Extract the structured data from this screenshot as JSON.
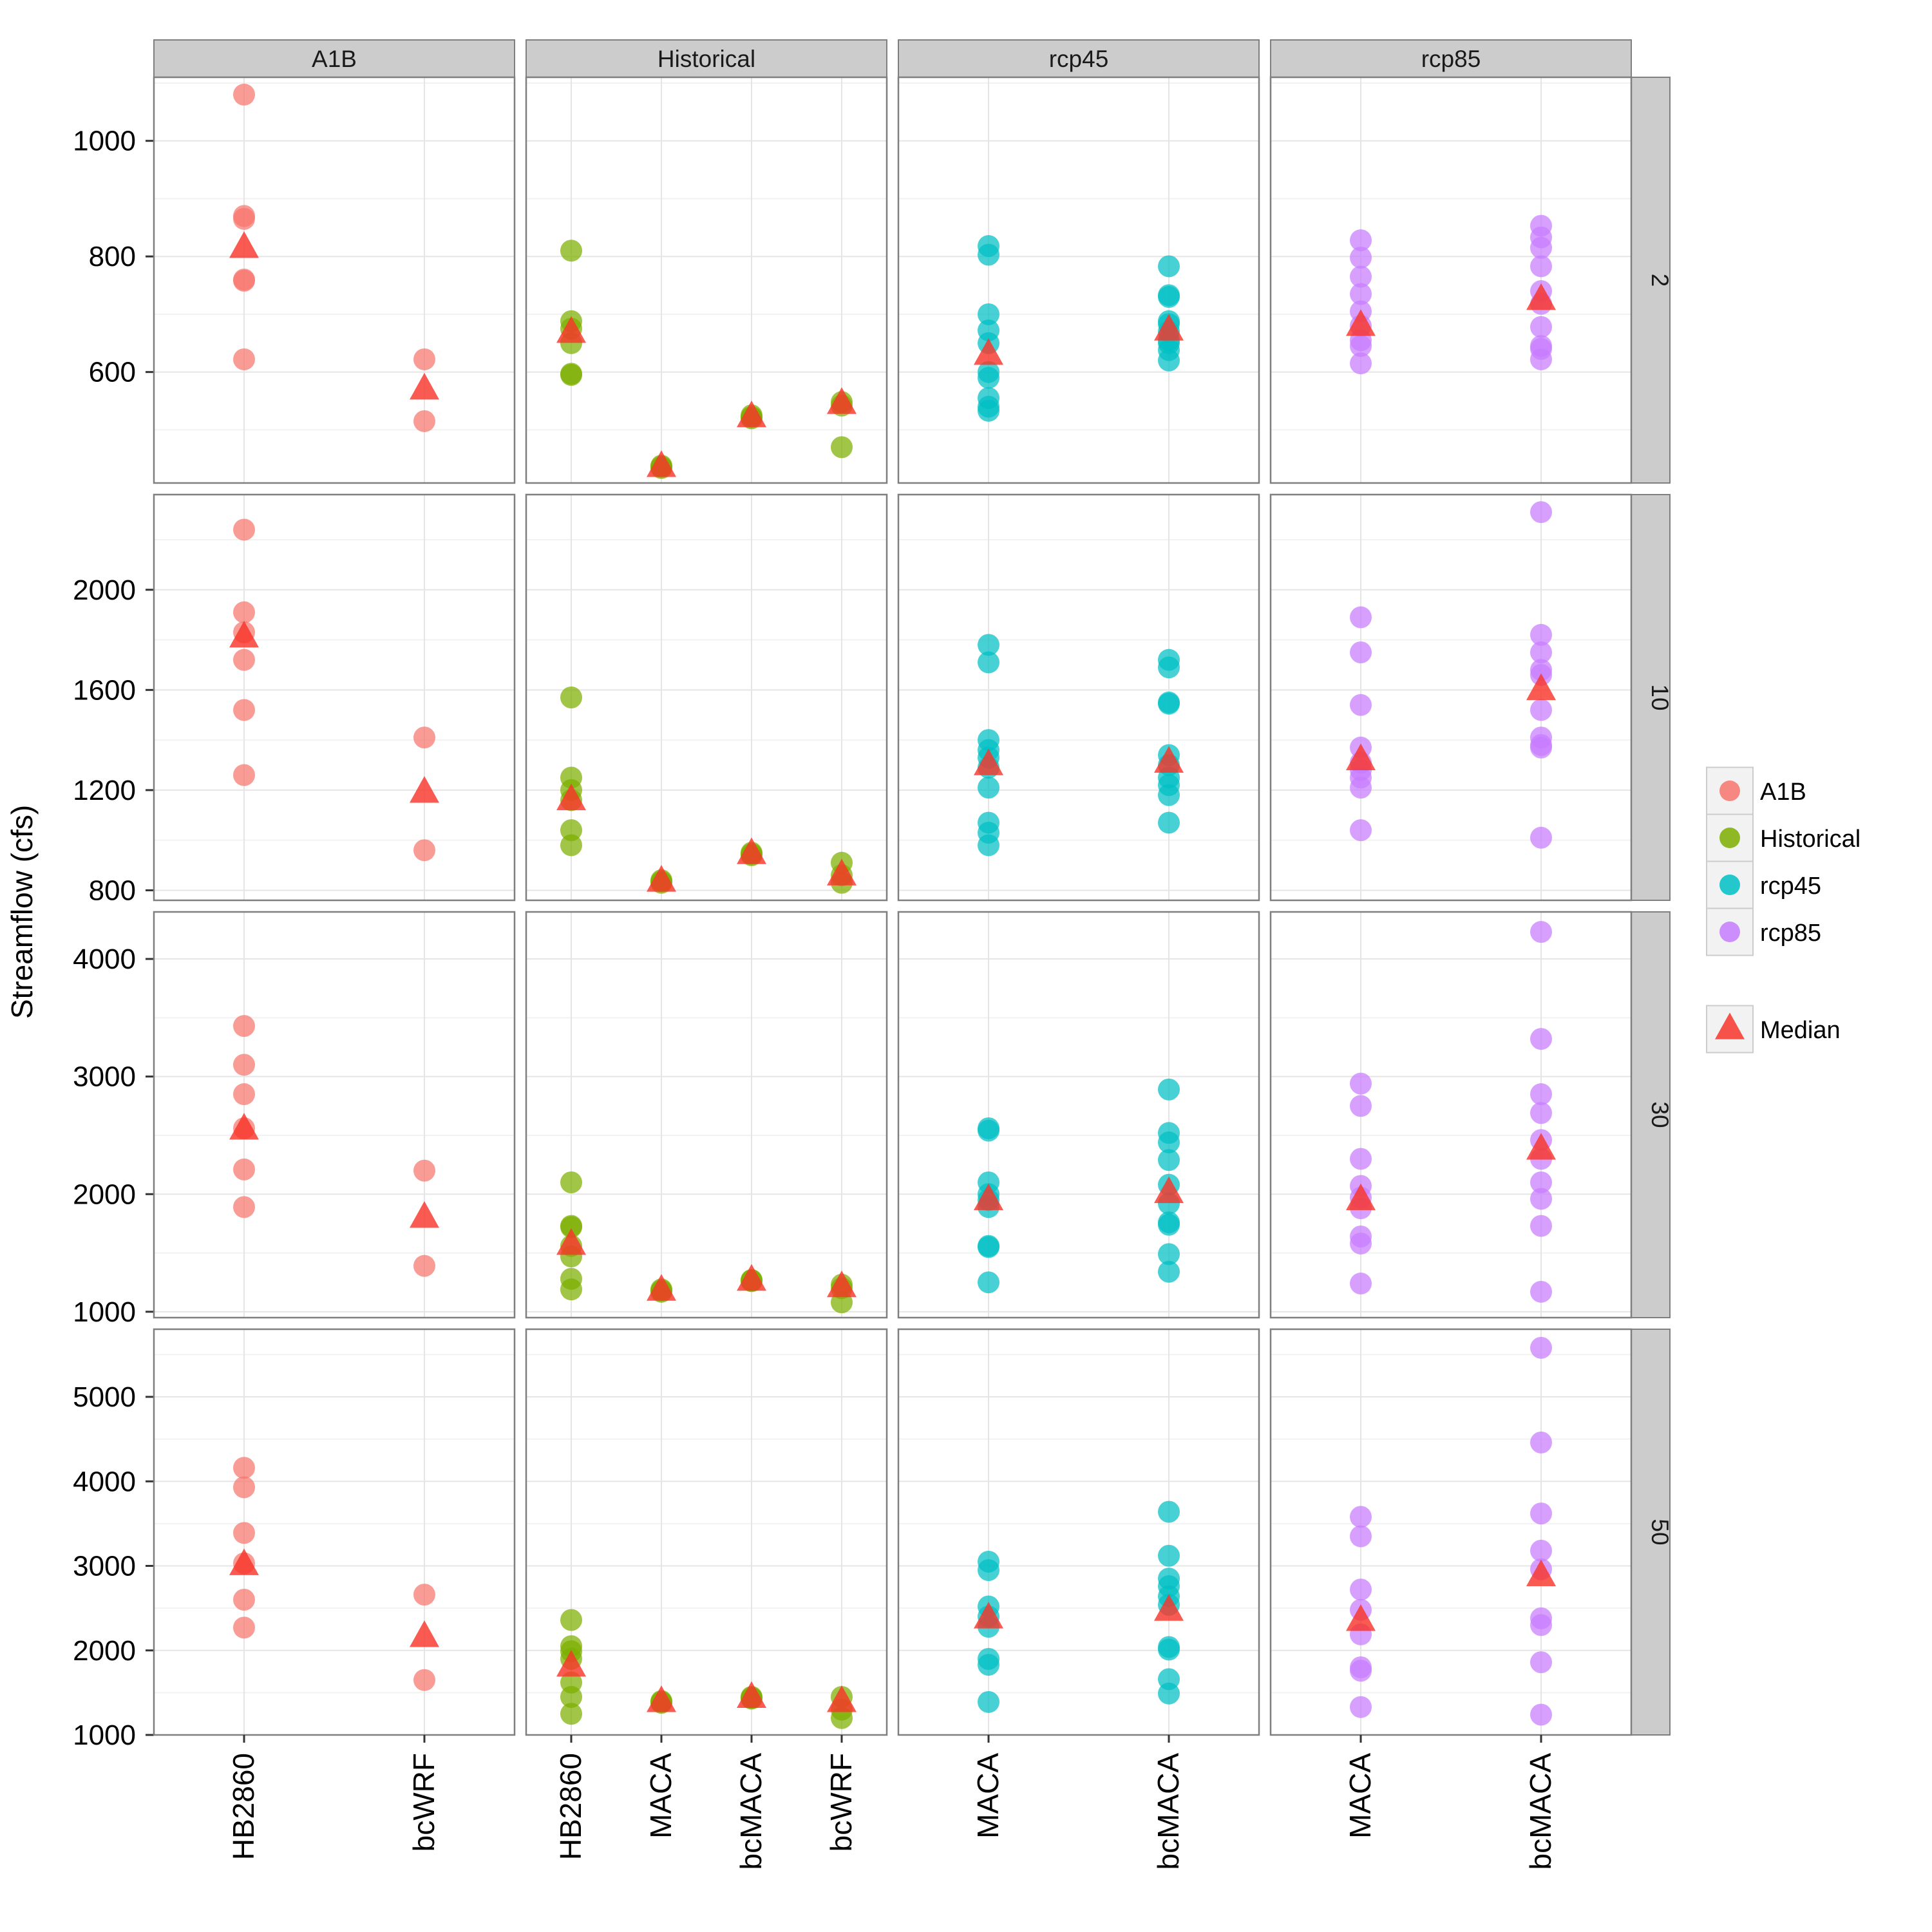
{
  "chart_data": {
    "type": "scatter",
    "ylabel": "Streamflow (cfs)",
    "xlabel": "",
    "facet_cols": [
      {
        "label": "A1B",
        "categories": [
          "HB2860",
          "bcWRF"
        ]
      },
      {
        "label": "Historical",
        "categories": [
          "HB2860",
          "MACA",
          "bcMACA",
          "bcWRF"
        ]
      },
      {
        "label": "rcp45",
        "categories": [
          "MACA",
          "bcMACA"
        ]
      },
      {
        "label": "rcp85",
        "categories": [
          "MACA",
          "bcMACA"
        ]
      }
    ],
    "facet_rows": [
      {
        "label": "2",
        "ylim": [
          408,
          1110
        ],
        "yticks": [
          600,
          800,
          1000
        ]
      },
      {
        "label": "10",
        "ylim": [
          760,
          2380
        ],
        "yticks": [
          800,
          1200,
          1600,
          2000
        ]
      },
      {
        "label": "30",
        "ylim": [
          950,
          4400
        ],
        "yticks": [
          1000,
          2000,
          3000,
          4000
        ]
      },
      {
        "label": "50",
        "ylim": [
          1000,
          5800
        ],
        "yticks": [
          1000,
          2000,
          3000,
          4000,
          5000
        ]
      }
    ],
    "colors": {
      "A1B": "#F8766D",
      "Historical": "#7CAE00",
      "rcp45": "#00BFC4",
      "rcp85": "#C77CFF",
      "median": "#F8362B"
    },
    "legend": {
      "series": [
        "A1B",
        "Historical",
        "rcp45",
        "rcp85"
      ],
      "median_label": "Median",
      "position": "right"
    },
    "grid": true,
    "points": [
      [
        {
          "HB2860": [
            1080,
            870,
            865,
            760,
            758,
            622
          ],
          "bcWRF": [
            622,
            515
          ]
        },
        {
          "HB2860": [
            810,
            688,
            675,
            650,
            597,
            595
          ],
          "MACA": [
            438,
            436,
            434
          ],
          "bcMACA": [
            525,
            522,
            520
          ],
          "bcWRF": [
            548,
            542,
            470
          ]
        },
        {
          "MACA": [
            818,
            803,
            700,
            672,
            650,
            600,
            590,
            555,
            540,
            533
          ],
          "bcMACA": [
            783,
            733,
            730,
            688,
            683,
            670,
            655,
            650,
            638,
            620
          ]
        },
        {
          "MACA": [
            828,
            798,
            765,
            735,
            705,
            680,
            655,
            645,
            615
          ],
          "bcMACA": [
            853,
            833,
            815,
            783,
            740,
            718,
            678,
            645,
            640,
            622
          ]
        }
      ],
      [
        {
          "HB2860": [
            2240,
            1910,
            1830,
            1720,
            1520,
            1260
          ],
          "bcWRF": [
            1410,
            960
          ]
        },
        {
          "HB2860": [
            1570,
            1250,
            1200,
            1160,
            1040,
            980
          ],
          "MACA": [
            840,
            835,
            830
          ],
          "bcMACA": [
            950,
            945,
            940
          ],
          "bcWRF": [
            910,
            860,
            830
          ]
        },
        {
          "MACA": [
            1780,
            1710,
            1400,
            1360,
            1330,
            1290,
            1210,
            1070,
            1030,
            980
          ],
          "bcMACA": [
            1720,
            1690,
            1550,
            1545,
            1340,
            1300,
            1250,
            1220,
            1180,
            1070
          ]
        },
        {
          "MACA": [
            1890,
            1750,
            1540,
            1370,
            1310,
            1280,
            1250,
            1210,
            1040
          ],
          "bcMACA": [
            2310,
            1820,
            1750,
            1680,
            1660,
            1520,
            1410,
            1380,
            1370,
            1010
          ]
        }
      ],
      [
        {
          "HB2860": [
            3430,
            3100,
            2850,
            2560,
            2210,
            1890
          ],
          "bcWRF": [
            2200,
            1390
          ]
        },
        {
          "HB2860": [
            2100,
            1730,
            1720,
            1560,
            1470,
            1280,
            1190
          ],
          "MACA": [
            1190,
            1180,
            1170
          ],
          "bcMACA": [
            1270,
            1265,
            1260
          ],
          "bcWRF": [
            1230,
            1200,
            1080
          ]
        },
        {
          "MACA": [
            2560,
            2540,
            2100,
            2000,
            1950,
            1890,
            1560,
            1550,
            1250
          ],
          "bcMACA": [
            2890,
            2520,
            2440,
            2290,
            2080,
            1920,
            1760,
            1740,
            1490,
            1340
          ]
        },
        {
          "MACA": [
            2940,
            2750,
            2300,
            2070,
            1970,
            1880,
            1640,
            1580,
            1240
          ],
          "bcMACA": [
            4230,
            3320,
            2850,
            2690,
            2460,
            2300,
            2100,
            1960,
            1730,
            1170
          ]
        }
      ],
      [
        {
          "HB2860": [
            4160,
            3930,
            3390,
            3030,
            2600,
            2270
          ],
          "bcWRF": [
            2660,
            1650
          ]
        },
        {
          "HB2860": [
            2360,
            2050,
            1990,
            1900,
            1620,
            1450,
            1250
          ],
          "MACA": [
            1400,
            1390,
            1380
          ],
          "bcMACA": [
            1450,
            1440,
            1430
          ],
          "bcWRF": [
            1450,
            1300,
            1200
          ]
        },
        {
          "MACA": [
            3050,
            2950,
            2520,
            2400,
            2280,
            1900,
            1830,
            1390
          ],
          "bcMACA": [
            3640,
            3120,
            2850,
            2760,
            2640,
            2540,
            2040,
            2010,
            1660,
            1490
          ]
        },
        {
          "MACA": [
            3580,
            3350,
            2720,
            2480,
            2190,
            1800,
            1760,
            1330
          ],
          "bcMACA": [
            5580,
            4460,
            3620,
            3180,
            2960,
            2380,
            2300,
            1860,
            1240
          ]
        }
      ]
    ],
    "medians": [
      [
        {
          "HB2860": 815,
          "bcWRF": 570
        },
        {
          "HB2860": 668,
          "MACA": 436,
          "bcMACA": 522,
          "bcWRF": 545
        },
        {
          "MACA": 630,
          "bcMACA": 672
        },
        {
          "MACA": 680,
          "bcMACA": 725
        }
      ],
      [
        {
          "HB2860": 1810,
          "bcWRF": 1190
        },
        {
          "HB2860": 1160,
          "MACA": 835,
          "bcMACA": 945,
          "bcWRF": 860
        },
        {
          "MACA": 1300,
          "bcMACA": 1310
        },
        {
          "MACA": 1320,
          "bcMACA": 1600
        }
      ],
      [
        {
          "HB2860": 2550,
          "bcWRF": 1800
        },
        {
          "HB2860": 1570,
          "MACA": 1180,
          "bcMACA": 1265,
          "bcWRF": 1210
        },
        {
          "MACA": 1950,
          "bcMACA": 2010
        },
        {
          "MACA": 1950,
          "bcMACA": 2380
        }
      ],
      [
        {
          "HB2860": 3010,
          "bcWRF": 2160
        },
        {
          "HB2860": 1810,
          "MACA": 1390,
          "bcMACA": 1440,
          "bcWRF": 1390
        },
        {
          "MACA": 2380,
          "bcMACA": 2470
        },
        {
          "MACA": 2350,
          "bcMACA": 2880
        }
      ]
    ]
  }
}
